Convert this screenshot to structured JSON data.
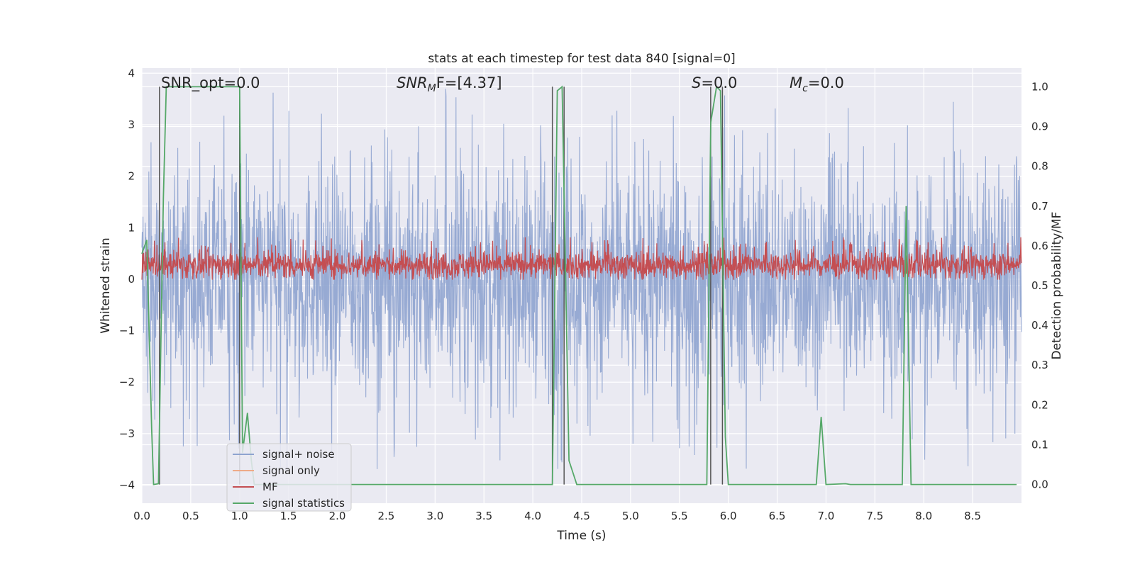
{
  "chart_data": {
    "type": "line",
    "title": "stats at each timestep for test data 840 [signal=0]",
    "xlabel": "Time (s)",
    "ylabel": "Whitened strain",
    "ylabel_right": "Detection probability/MF",
    "xlim": [
      0.0,
      9.0
    ],
    "ylim": [
      -4.35,
      4.1
    ],
    "ylim_right": [
      -0.047,
      1.047
    ],
    "xticks": [
      "0.0",
      "0.5",
      "1.0",
      "1.5",
      "2.0",
      "2.5",
      "3.0",
      "3.5",
      "4.0",
      "4.5",
      "5.0",
      "5.5",
      "6.0",
      "6.5",
      "7.0",
      "7.5",
      "8.0",
      "8.5"
    ],
    "yticks": [
      "4",
      "3",
      "2",
      "1",
      "0",
      "−1",
      "−2",
      "−3",
      "−4"
    ],
    "yticks_right": [
      "1.0",
      "0.9",
      "0.8",
      "0.7",
      "0.6",
      "0.5",
      "0.4",
      "0.3",
      "0.2",
      "0.1",
      "0.0"
    ],
    "annotations": {
      "snr_opt": {
        "prefix": "SNR_opt=",
        "value": "0.0"
      },
      "snr_mf": {
        "base": "SNR",
        "sub": "M",
        "rest": "F=",
        "value": "[4.37]"
      },
      "s": {
        "sym": "S",
        "rest": "=",
        "value": "0.0"
      },
      "mc": {
        "base": "M",
        "sub": "c",
        "rest": "=",
        "value": "0.0"
      }
    },
    "legend": {
      "placement": "lower-left",
      "entries": [
        {
          "label": "signal+ noise",
          "color": "#8ea3cf"
        },
        {
          "label": "signal only",
          "color": "#eeaa88"
        },
        {
          "label": "MF",
          "color": "#c44e52"
        },
        {
          "label": "signal statistics",
          "color": "#55a868"
        }
      ]
    },
    "series": [
      {
        "name": "signal+ noise",
        "color": "#8ea3cf",
        "description": "dense whitened strain noise, amplitude roughly ±2 with spikes to ±3.7",
        "envelope_abs": 2.0,
        "peak_abs": 3.7
      },
      {
        "name": "MF",
        "color": "#c44e52",
        "description": "matched filter output plotted on right axis, oscillating between about 0.52 and 0.62",
        "range_right": [
          0.515,
          0.625
        ]
      },
      {
        "name": "signal statistics",
        "color": "#55a868",
        "x": [
          0.0,
          0.05,
          0.1,
          0.12,
          0.17,
          0.22,
          0.25,
          1.0,
          1.03,
          1.08,
          1.12,
          1.15,
          1.2,
          4.2,
          4.25,
          4.3,
          4.37,
          4.45,
          5.78,
          5.82,
          5.88,
          5.92,
          5.97,
          6.0,
          6.9,
          6.95,
          7.0,
          7.2,
          7.25,
          7.78,
          7.82,
          7.87,
          7.9,
          8.95
        ],
        "y": [
          0.58,
          0.615,
          0.14,
          0.0,
          0.002,
          0.72,
          1.0,
          1.0,
          0.08,
          0.18,
          0.06,
          0.0,
          0.0,
          0.0,
          0.99,
          1.0,
          0.06,
          0.0,
          0.0,
          0.91,
          1.0,
          0.99,
          0.12,
          0.0,
          0.0,
          0.17,
          0.0,
          0.002,
          0.0,
          0.0,
          0.7,
          0.0,
          0.0,
          0.0
        ]
      }
    ],
    "vlines_x": [
      0.18,
      1.0,
      4.2,
      4.32,
      5.82,
      5.94
    ]
  }
}
